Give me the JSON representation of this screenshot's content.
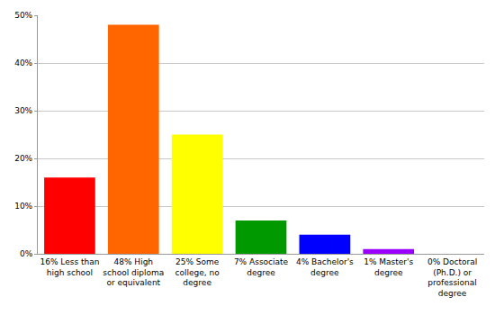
{
  "chart_data": {
    "type": "bar",
    "categories": [
      "16% Less than high school",
      "48% High school diploma or equivalent",
      "25% Some college, no degree",
      "7% Associate degree",
      "4% Bachelor's degree",
      "1% Master's degree",
      "0% Doctoral (Ph.D.) or professional degree"
    ],
    "values": [
      16,
      48,
      25,
      7,
      4,
      1,
      0
    ],
    "colors": [
      "#ff0000",
      "#ff6600",
      "#ffff00",
      "#009900",
      "#0000ff",
      "#9900ff",
      "#ff00ff"
    ],
    "ylim": [
      0,
      50
    ],
    "yticks": [
      {
        "value": 0,
        "label": "0%"
      },
      {
        "value": 10,
        "label": "10%"
      },
      {
        "value": 20,
        "label": "20%"
      },
      {
        "value": 30,
        "label": "30%"
      },
      {
        "value": 40,
        "label": "40%"
      },
      {
        "value": 50,
        "label": "50%"
      }
    ],
    "grid": true
  }
}
